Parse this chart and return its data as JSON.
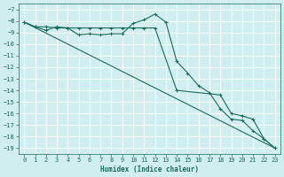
{
  "xlabel": "Humidex (Indice chaleur)",
  "xlim": [
    -0.5,
    23.5
  ],
  "ylim": [
    -19.5,
    -6.5
  ],
  "yticks": [
    -7,
    -8,
    -9,
    -10,
    -11,
    -12,
    -13,
    -14,
    -15,
    -16,
    -17,
    -18,
    -19
  ],
  "xticks": [
    0,
    1,
    2,
    3,
    4,
    5,
    6,
    7,
    8,
    9,
    10,
    11,
    12,
    13,
    14,
    15,
    16,
    17,
    18,
    19,
    20,
    21,
    22,
    23
  ],
  "bg_color": "#d0eef0",
  "grid_color": "#b8dde0",
  "line_color": "#1a6b5a",
  "line1_x": [
    0,
    1,
    2,
    3,
    4,
    5,
    6,
    7,
    8,
    9,
    10,
    11,
    12,
    13,
    14,
    15,
    16,
    17,
    18,
    19,
    20,
    21,
    22,
    23
  ],
  "line1_y": [
    -8.1,
    -8.5,
    -8.8,
    -8.5,
    -8.6,
    -9.2,
    -9.1,
    -9.2,
    -9.1,
    -9.1,
    -8.2,
    -7.9,
    -7.4,
    -8.1,
    -11.5,
    -12.5,
    -13.6,
    -14.2,
    -15.6,
    -16.5,
    -16.6,
    -17.5,
    -18.2,
    -19.0
  ],
  "line2_x": [
    0,
    1,
    2,
    3,
    4,
    5,
    6,
    7,
    8,
    9,
    10,
    11,
    12,
    14,
    18,
    19,
    20,
    21,
    22,
    23
  ],
  "line2_y": [
    -8.1,
    -8.5,
    -8.5,
    -8.6,
    -8.6,
    -8.6,
    -8.6,
    -8.6,
    -8.6,
    -8.6,
    -8.6,
    -8.6,
    -8.6,
    -14.0,
    -14.4,
    -16.0,
    -16.2,
    -16.5,
    -18.2,
    -19.0
  ],
  "line3_x": [
    0,
    23
  ],
  "line3_y": [
    -8.1,
    -19.0
  ]
}
